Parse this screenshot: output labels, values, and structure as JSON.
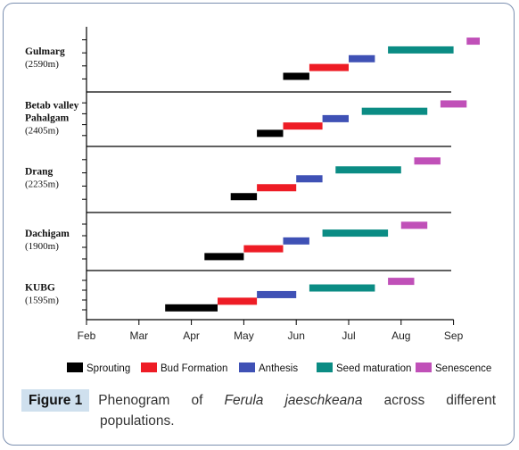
{
  "chart_data": {
    "type": "gantt",
    "x_ticks": [
      "Feb",
      "Mar",
      "Apr",
      "May",
      "Jun",
      "Jul",
      "Aug",
      "Sep"
    ],
    "phases": [
      {
        "name": "Sprouting",
        "color": "#000000"
      },
      {
        "name": "Bud Formation",
        "color": "#ee1c25"
      },
      {
        "name": "Anthesis",
        "color": "#3f51b5"
      },
      {
        "name": "Seed maturation",
        "color": "#0b8c84"
      },
      {
        "name": "Senescence",
        "color": "#c050b8"
      }
    ],
    "populations": [
      {
        "label_lines": [
          "Gulmarg"
        ],
        "altitude": "(2590m)",
        "bars": [
          {
            "phase": 0,
            "start": 3.75,
            "end": 4.25
          },
          {
            "phase": 1,
            "start": 4.25,
            "end": 5.0
          },
          {
            "phase": 2,
            "start": 5.0,
            "end": 5.5
          },
          {
            "phase": 3,
            "start": 5.75,
            "end": 7.0
          },
          {
            "phase": 4,
            "start": 7.25,
            "end": 7.5
          }
        ]
      },
      {
        "label_lines": [
          "Betab valley",
          "Pahalgam"
        ],
        "altitude": "(2405m)",
        "bars": [
          {
            "phase": 0,
            "start": 3.25,
            "end": 3.75
          },
          {
            "phase": 1,
            "start": 3.75,
            "end": 4.5
          },
          {
            "phase": 2,
            "start": 4.5,
            "end": 5.0
          },
          {
            "phase": 3,
            "start": 5.25,
            "end": 6.5
          },
          {
            "phase": 4,
            "start": 6.75,
            "end": 7.25
          }
        ]
      },
      {
        "label_lines": [
          "Drang"
        ],
        "altitude": "(2235m)",
        "bars": [
          {
            "phase": 0,
            "start": 2.75,
            "end": 3.25
          },
          {
            "phase": 1,
            "start": 3.25,
            "end": 4.0
          },
          {
            "phase": 2,
            "start": 4.0,
            "end": 4.5
          },
          {
            "phase": 3,
            "start": 4.75,
            "end": 6.0
          },
          {
            "phase": 4,
            "start": 6.25,
            "end": 6.75
          }
        ]
      },
      {
        "label_lines": [
          "Dachigam"
        ],
        "altitude": "(1900m)",
        "bars": [
          {
            "phase": 0,
            "start": 2.25,
            "end": 3.0
          },
          {
            "phase": 1,
            "start": 3.0,
            "end": 3.75
          },
          {
            "phase": 2,
            "start": 3.75,
            "end": 4.25
          },
          {
            "phase": 3,
            "start": 4.5,
            "end": 5.75
          },
          {
            "phase": 4,
            "start": 6.0,
            "end": 6.5
          }
        ]
      },
      {
        "label_lines": [
          "KUBG"
        ],
        "altitude": "(1595m)",
        "bars": [
          {
            "phase": 0,
            "start": 1.5,
            "end": 2.5
          },
          {
            "phase": 1,
            "start": 2.5,
            "end": 3.25
          },
          {
            "phase": 2,
            "start": 3.25,
            "end": 4.0
          },
          {
            "phase": 3,
            "start": 4.25,
            "end": 5.5
          },
          {
            "phase": 4,
            "start": 5.75,
            "end": 6.25
          }
        ]
      }
    ]
  },
  "caption": {
    "figure_label": "Figure 1",
    "text_before": "Phenogram of",
    "species": "Ferula jaeschkeana",
    "text_after": "across different",
    "line2": "populations."
  }
}
